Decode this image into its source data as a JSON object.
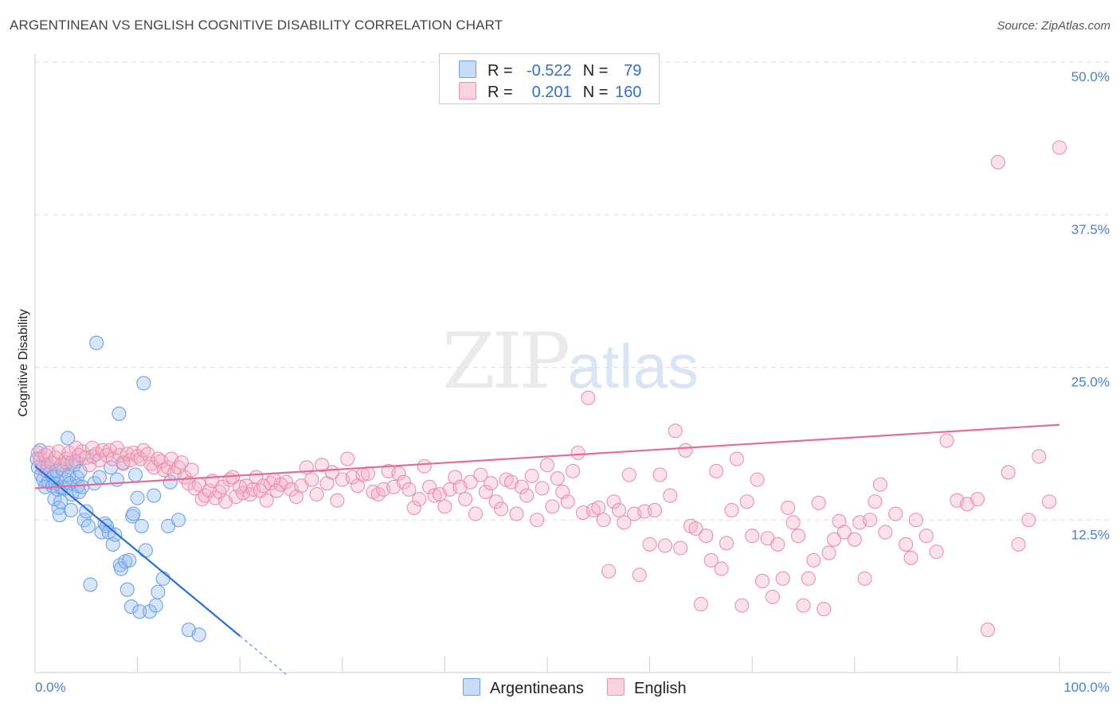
{
  "chart_data": {
    "type": "scatter",
    "title": "ARGENTINEAN VS ENGLISH COGNITIVE DISABILITY CORRELATION CHART",
    "source": "Source: ZipAtlas.com",
    "xlabel": "",
    "ylabel": "Cognitive Disability",
    "xlim": [
      0,
      100
    ],
    "ylim": [
      0,
      50
    ],
    "x_tick_labels": [
      "0.0%",
      "100.0%"
    ],
    "y_ticks": [
      12.5,
      25.0,
      37.5,
      50.0
    ],
    "y_tick_labels": [
      "12.5%",
      "25.0%",
      "37.5%",
      "50.0%"
    ],
    "grid": true,
    "watermark": {
      "main": "ZIP",
      "sub": "atlas"
    },
    "legend": {
      "rows": [
        {
          "r_label": "R =",
          "r_value": "-0.522",
          "n_label": "N =",
          "n_value": "79"
        },
        {
          "r_label": "R =",
          "r_value": "0.201",
          "n_label": "N =",
          "n_value": "160"
        }
      ]
    },
    "series": [
      {
        "name": "Argentineans",
        "color": "#6fa1e8",
        "fill": "rgba(155,190,240,0.40)",
        "line_color": "#2a6fd4",
        "trend": {
          "x0": 0,
          "y0": 16.9,
          "x1": 20,
          "y1": 3.0,
          "dash_to_x": 24.5
        },
        "points": [
          [
            0.2,
            17.5
          ],
          [
            0.3,
            16.8
          ],
          [
            0.5,
            18.2
          ],
          [
            0.6,
            16.2
          ],
          [
            0.8,
            15.8
          ],
          [
            1.0,
            15.2
          ],
          [
            1.1,
            16.5
          ],
          [
            1.2,
            17.0
          ],
          [
            1.3,
            15.6
          ],
          [
            1.5,
            16.4
          ],
          [
            1.6,
            17.2
          ],
          [
            1.7,
            15.3
          ],
          [
            1.8,
            16.0
          ],
          [
            1.9,
            14.2
          ],
          [
            2.0,
            15.5
          ],
          [
            2.1,
            16.5
          ],
          [
            2.2,
            15.0
          ],
          [
            2.3,
            13.5
          ],
          [
            2.4,
            12.9
          ],
          [
            2.5,
            14.0
          ],
          [
            2.6,
            15.2
          ],
          [
            2.7,
            16.6
          ],
          [
            2.8,
            17.0
          ],
          [
            2.9,
            15.1
          ],
          [
            3.0,
            15.8
          ],
          [
            3.1,
            17.2
          ],
          [
            3.2,
            19.2
          ],
          [
            3.3,
            16.2
          ],
          [
            3.4,
            15.5
          ],
          [
            3.5,
            13.3
          ],
          [
            3.6,
            14.6
          ],
          [
            3.8,
            17.0
          ],
          [
            4.0,
            17.3
          ],
          [
            4.1,
            16.0
          ],
          [
            4.2,
            15.3
          ],
          [
            4.3,
            14.8
          ],
          [
            4.4,
            16.5
          ],
          [
            4.6,
            15.2
          ],
          [
            4.8,
            12.5
          ],
          [
            5.0,
            13.2
          ],
          [
            5.2,
            12.0
          ],
          [
            5.4,
            7.2
          ],
          [
            5.6,
            17.7
          ],
          [
            5.8,
            15.5
          ],
          [
            6.0,
            27.0
          ],
          [
            6.3,
            16.0
          ],
          [
            6.5,
            11.5
          ],
          [
            6.8,
            12.2
          ],
          [
            7.0,
            12.0
          ],
          [
            7.2,
            11.5
          ],
          [
            7.4,
            16.8
          ],
          [
            7.6,
            10.5
          ],
          [
            7.8,
            11.3
          ],
          [
            8.0,
            15.8
          ],
          [
            8.2,
            21.2
          ],
          [
            8.3,
            8.8
          ],
          [
            8.4,
            8.5
          ],
          [
            8.6,
            17.2
          ],
          [
            8.8,
            9.1
          ],
          [
            9.0,
            6.8
          ],
          [
            9.2,
            9.2
          ],
          [
            9.4,
            5.4
          ],
          [
            9.5,
            12.8
          ],
          [
            9.6,
            13.0
          ],
          [
            9.8,
            16.2
          ],
          [
            10.0,
            14.3
          ],
          [
            10.2,
            5.0
          ],
          [
            10.4,
            12.0
          ],
          [
            10.6,
            23.7
          ],
          [
            10.8,
            10.0
          ],
          [
            11.2,
            5.0
          ],
          [
            11.6,
            14.5
          ],
          [
            11.8,
            5.5
          ],
          [
            12.0,
            6.6
          ],
          [
            12.5,
            7.7
          ],
          [
            13.0,
            12.0
          ],
          [
            13.2,
            15.6
          ],
          [
            14.0,
            12.5
          ],
          [
            15.0,
            3.5
          ],
          [
            16.0,
            3.1
          ]
        ]
      },
      {
        "name": "English",
        "color": "#eb8fae",
        "fill": "rgba(245,175,200,0.38)",
        "line_color": "#e46c98",
        "trend": {
          "x0": 0,
          "y0": 15.1,
          "x1": 100,
          "y1": 20.3
        },
        "points": [
          [
            0.3,
            18.0
          ],
          [
            0.5,
            17.5
          ],
          [
            0.8,
            16.8
          ],
          [
            1.0,
            17.8
          ],
          [
            1.3,
            18.0
          ],
          [
            1.6,
            17.2
          ],
          [
            2.0,
            17.6
          ],
          [
            2.3,
            18.1
          ],
          [
            2.6,
            17.0
          ],
          [
            3.0,
            17.5
          ],
          [
            3.3,
            18.0
          ],
          [
            3.6,
            17.2
          ],
          [
            4.0,
            18.4
          ],
          [
            4.3,
            17.8
          ],
          [
            4.6,
            18.1
          ],
          [
            5.0,
            17.6
          ],
          [
            5.3,
            17.0
          ],
          [
            5.6,
            18.4
          ],
          [
            6.0,
            17.9
          ],
          [
            6.3,
            17.4
          ],
          [
            6.6,
            18.2
          ],
          [
            7.0,
            17.8
          ],
          [
            7.3,
            18.2
          ],
          [
            7.6,
            17.5
          ],
          [
            8.0,
            18.4
          ],
          [
            8.3,
            17.8
          ],
          [
            8.6,
            17.1
          ],
          [
            9.0,
            17.9
          ],
          [
            9.3,
            17.4
          ],
          [
            9.6,
            18.0
          ],
          [
            10.0,
            17.7
          ],
          [
            10.3,
            17.5
          ],
          [
            10.6,
            18.2
          ],
          [
            11.0,
            17.9
          ],
          [
            11.3,
            17.1
          ],
          [
            11.6,
            16.8
          ],
          [
            12.0,
            17.5
          ],
          [
            12.3,
            17.3
          ],
          [
            12.6,
            16.6
          ],
          [
            13.0,
            16.8
          ],
          [
            13.3,
            17.5
          ],
          [
            13.6,
            16.3
          ],
          [
            14.0,
            16.8
          ],
          [
            14.3,
            17.2
          ],
          [
            14.6,
            16.0
          ],
          [
            15.0,
            15.5
          ],
          [
            15.3,
            16.6
          ],
          [
            15.6,
            15.1
          ],
          [
            16.0,
            15.4
          ],
          [
            16.3,
            14.2
          ],
          [
            16.6,
            14.5
          ],
          [
            17.0,
            14.9
          ],
          [
            17.3,
            15.7
          ],
          [
            17.6,
            14.3
          ],
          [
            18.0,
            14.8
          ],
          [
            18.3,
            15.2
          ],
          [
            18.6,
            14.0
          ],
          [
            19.0,
            15.8
          ],
          [
            19.3,
            16.0
          ],
          [
            19.6,
            14.4
          ],
          [
            20.0,
            15.2
          ],
          [
            20.3,
            14.7
          ],
          [
            20.6,
            15.3
          ],
          [
            21.0,
            14.6
          ],
          [
            21.3,
            15.0
          ],
          [
            21.6,
            16.0
          ],
          [
            22.0,
            14.9
          ],
          [
            22.3,
            15.3
          ],
          [
            22.6,
            14.1
          ],
          [
            23.0,
            15.5
          ],
          [
            23.3,
            15.8
          ],
          [
            23.6,
            14.9
          ],
          [
            24.0,
            15.4
          ],
          [
            24.5,
            15.6
          ],
          [
            25.0,
            15.0
          ],
          [
            25.5,
            14.4
          ],
          [
            26.0,
            15.3
          ],
          [
            26.5,
            16.8
          ],
          [
            27.0,
            15.8
          ],
          [
            27.5,
            14.6
          ],
          [
            28.0,
            17.0
          ],
          [
            28.5,
            15.5
          ],
          [
            29.0,
            16.4
          ],
          [
            29.5,
            14.1
          ],
          [
            30.0,
            15.8
          ],
          [
            30.5,
            17.5
          ],
          [
            31.0,
            16.0
          ],
          [
            31.5,
            15.3
          ],
          [
            32.0,
            16.2
          ],
          [
            32.5,
            16.3
          ],
          [
            33.0,
            14.8
          ],
          [
            33.5,
            14.6
          ],
          [
            34.0,
            15.0
          ],
          [
            34.5,
            16.5
          ],
          [
            35.0,
            15.2
          ],
          [
            35.5,
            16.3
          ],
          [
            36.0,
            15.6
          ],
          [
            36.5,
            15.0
          ],
          [
            37.0,
            13.5
          ],
          [
            37.5,
            14.2
          ],
          [
            38.0,
            16.9
          ],
          [
            38.5,
            15.2
          ],
          [
            39.0,
            14.5
          ],
          [
            39.5,
            14.6
          ],
          [
            40.0,
            13.6
          ],
          [
            40.5,
            15.0
          ],
          [
            41.0,
            16.0
          ],
          [
            41.5,
            15.2
          ],
          [
            42.0,
            14.2
          ],
          [
            42.5,
            15.6
          ],
          [
            43.0,
            13.0
          ],
          [
            43.5,
            16.2
          ],
          [
            44.0,
            14.8
          ],
          [
            44.5,
            15.5
          ],
          [
            45.0,
            14.0
          ],
          [
            45.5,
            13.4
          ],
          [
            46.0,
            15.8
          ],
          [
            46.5,
            15.6
          ],
          [
            47.0,
            13.0
          ],
          [
            47.5,
            15.2
          ],
          [
            48.0,
            14.5
          ],
          [
            48.5,
            16.1
          ],
          [
            49.0,
            12.5
          ],
          [
            49.5,
            15.1
          ],
          [
            50.0,
            17.0
          ],
          [
            50.5,
            13.6
          ],
          [
            51.0,
            15.9
          ],
          [
            51.5,
            14.8
          ],
          [
            52.0,
            14.0
          ],
          [
            52.5,
            16.5
          ],
          [
            53.0,
            18.0
          ],
          [
            53.5,
            13.1
          ],
          [
            54.0,
            22.5
          ],
          [
            54.5,
            13.3
          ],
          [
            55.0,
            13.5
          ],
          [
            55.5,
            12.5
          ],
          [
            56.0,
            8.3
          ],
          [
            56.5,
            14.0
          ],
          [
            57.0,
            13.3
          ],
          [
            57.5,
            12.3
          ],
          [
            58.0,
            16.2
          ],
          [
            58.5,
            13.0
          ],
          [
            59.0,
            8.0
          ],
          [
            59.5,
            13.2
          ],
          [
            60.0,
            10.5
          ],
          [
            60.5,
            13.3
          ],
          [
            61.0,
            16.2
          ],
          [
            61.5,
            10.4
          ],
          [
            62.0,
            14.5
          ],
          [
            62.5,
            19.8
          ],
          [
            63.0,
            10.2
          ],
          [
            63.5,
            18.2
          ],
          [
            64.0,
            12.0
          ],
          [
            64.5,
            11.8
          ],
          [
            65.0,
            5.6
          ],
          [
            65.5,
            11.2
          ],
          [
            66.0,
            9.2
          ],
          [
            66.5,
            16.5
          ],
          [
            67.0,
            8.5
          ],
          [
            67.5,
            10.6
          ],
          [
            68.0,
            13.3
          ],
          [
            68.5,
            17.5
          ],
          [
            69.0,
            5.5
          ],
          [
            69.5,
            14.0
          ],
          [
            70.0,
            11.2
          ],
          [
            70.5,
            15.8
          ],
          [
            71.0,
            7.5
          ],
          [
            71.5,
            11.0
          ],
          [
            72.0,
            6.2
          ],
          [
            72.5,
            10.5
          ],
          [
            73.0,
            7.7
          ],
          [
            73.5,
            13.5
          ],
          [
            74.0,
            12.3
          ],
          [
            74.5,
            11.2
          ],
          [
            75.0,
            5.5
          ],
          [
            75.5,
            7.7
          ],
          [
            76.0,
            9.2
          ],
          [
            76.5,
            13.9
          ],
          [
            77.0,
            5.2
          ],
          [
            77.5,
            9.8
          ],
          [
            78.0,
            10.9
          ],
          [
            78.5,
            12.4
          ],
          [
            79.0,
            11.5
          ],
          [
            80.0,
            10.9
          ],
          [
            80.5,
            12.3
          ],
          [
            81.0,
            7.7
          ],
          [
            81.5,
            12.5
          ],
          [
            82.0,
            14.0
          ],
          [
            82.5,
            15.4
          ],
          [
            83.0,
            11.5
          ],
          [
            84.0,
            13.0
          ],
          [
            85.0,
            10.5
          ],
          [
            85.5,
            9.4
          ],
          [
            86.0,
            12.5
          ],
          [
            87.0,
            11.2
          ],
          [
            88.0,
            9.9
          ],
          [
            89.0,
            19.0
          ],
          [
            90.0,
            14.1
          ],
          [
            91.0,
            13.8
          ],
          [
            92.0,
            14.2
          ],
          [
            93.0,
            3.5
          ],
          [
            94.0,
            41.8
          ],
          [
            95.0,
            16.4
          ],
          [
            96.0,
            10.5
          ],
          [
            97.0,
            12.5
          ],
          [
            98.0,
            17.7
          ],
          [
            99.0,
            14.0
          ],
          [
            100.0,
            43.0
          ]
        ]
      }
    ]
  }
}
